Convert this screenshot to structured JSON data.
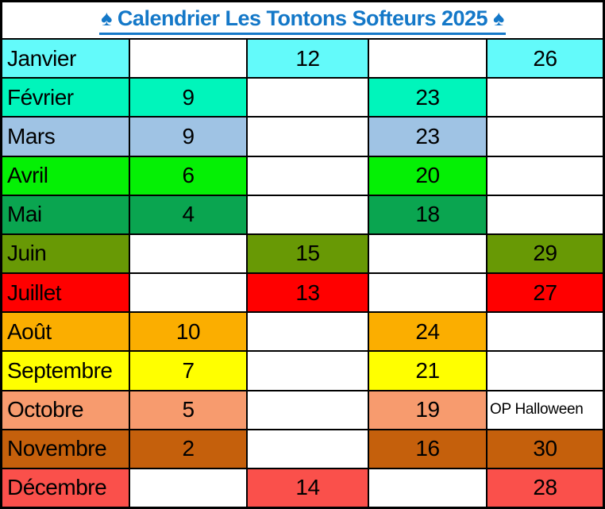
{
  "title": {
    "text": "♠ Calendrier Les Tontons Softeurs 2025 ♠",
    "color": "#1478C8"
  },
  "table": {
    "description": "Monthly schedule grid: month name column plus four date columns; colored cells mark scheduled dates",
    "rows": [
      {
        "month": "Janvier",
        "color": "#63FAFA",
        "cells": [
          {
            "text": "",
            "colored": false
          },
          {
            "text": "12",
            "colored": true
          },
          {
            "text": "",
            "colored": false
          },
          {
            "text": "26",
            "colored": true
          }
        ]
      },
      {
        "month": "Février",
        "color": "#00F5BB",
        "cells": [
          {
            "text": "9",
            "colored": true
          },
          {
            "text": "",
            "colored": false
          },
          {
            "text": "23",
            "colored": true
          },
          {
            "text": "",
            "colored": false
          }
        ]
      },
      {
        "month": "Mars",
        "color": "#9FC3E4",
        "cells": [
          {
            "text": "9",
            "colored": true
          },
          {
            "text": "",
            "colored": false
          },
          {
            "text": "23",
            "colored": true
          },
          {
            "text": "",
            "colored": false
          }
        ]
      },
      {
        "month": "Avril",
        "color": "#05F005",
        "cells": [
          {
            "text": "6",
            "colored": true
          },
          {
            "text": "",
            "colored": false
          },
          {
            "text": "20",
            "colored": true
          },
          {
            "text": "",
            "colored": false
          }
        ]
      },
      {
        "month": "Mai",
        "color": "#0AA550",
        "cells": [
          {
            "text": "4",
            "colored": true
          },
          {
            "text": "",
            "colored": false
          },
          {
            "text": "18",
            "colored": true
          },
          {
            "text": "",
            "colored": false
          }
        ]
      },
      {
        "month": "Juin",
        "color": "#689905",
        "cells": [
          {
            "text": "",
            "colored": false
          },
          {
            "text": "15",
            "colored": true
          },
          {
            "text": "",
            "colored": false
          },
          {
            "text": "29",
            "colored": true
          }
        ]
      },
      {
        "month": "Juillet",
        "color": "#FF0000",
        "cells": [
          {
            "text": "",
            "colored": false
          },
          {
            "text": "13",
            "colored": true
          },
          {
            "text": "",
            "colored": false
          },
          {
            "text": "27",
            "colored": true
          }
        ]
      },
      {
        "month": "Août",
        "color": "#FBAE00",
        "cells": [
          {
            "text": "10",
            "colored": true
          },
          {
            "text": "",
            "colored": false
          },
          {
            "text": "24",
            "colored": true
          },
          {
            "text": "",
            "colored": false
          }
        ]
      },
      {
        "month": "Septembre",
        "color": "#FFFF00",
        "cells": [
          {
            "text": "7",
            "colored": true
          },
          {
            "text": "",
            "colored": false
          },
          {
            "text": "21",
            "colored": true
          },
          {
            "text": "",
            "colored": false
          }
        ]
      },
      {
        "month": "Octobre",
        "color": "#F79B6E",
        "cells": [
          {
            "text": "5",
            "colored": true
          },
          {
            "text": "",
            "colored": false
          },
          {
            "text": "19",
            "colored": true
          },
          {
            "text": "OP Halloween",
            "colored": false,
            "note": true
          }
        ]
      },
      {
        "month": "Novembre",
        "color": "#C5600C",
        "cells": [
          {
            "text": "2",
            "colored": true
          },
          {
            "text": "",
            "colored": false
          },
          {
            "text": "16",
            "colored": true
          },
          {
            "text": "30",
            "colored": true
          }
        ]
      },
      {
        "month": "Décembre",
        "color": "#FA504B",
        "cells": [
          {
            "text": "",
            "colored": false
          },
          {
            "text": "14",
            "colored": true
          },
          {
            "text": "",
            "colored": false
          },
          {
            "text": "28",
            "colored": true
          }
        ]
      }
    ]
  }
}
